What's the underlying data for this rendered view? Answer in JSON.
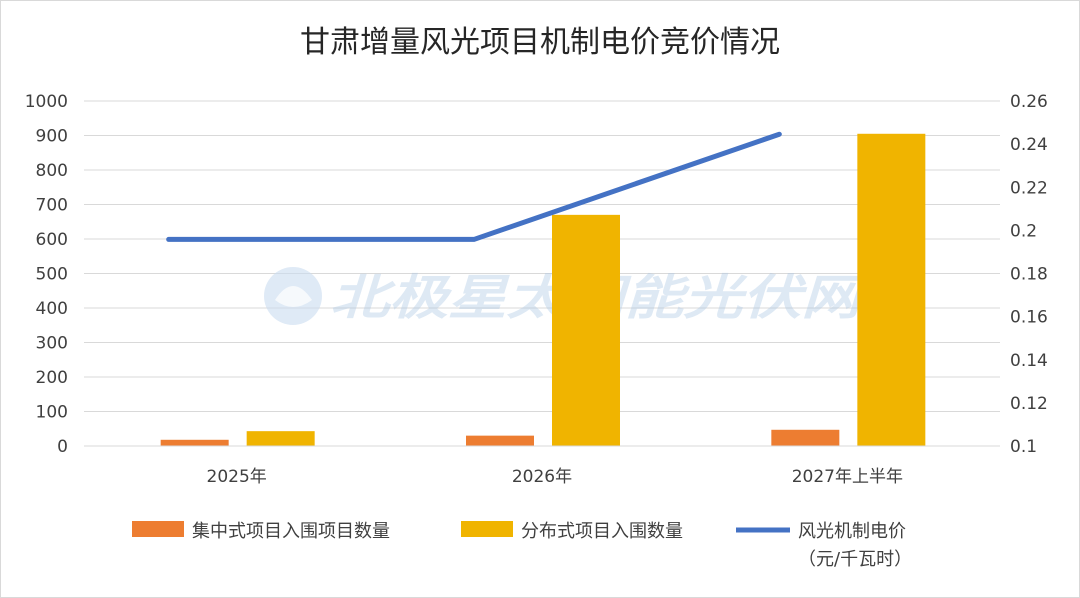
{
  "chart_data": {
    "type": "bar",
    "title": "甘肃增量风光项目机制电价竞价情况",
    "categories": [
      "2025年",
      "2026年",
      "2027年上半年"
    ],
    "series": [
      {
        "name": "集中式项目入围项目数量",
        "type": "bar",
        "axis": "left",
        "color": "#ed7d31",
        "values": [
          18,
          30,
          47
        ]
      },
      {
        "name": "分布式项目入围数量",
        "type": "bar",
        "axis": "left",
        "color": "#f0b400",
        "values": [
          43,
          670,
          905
        ]
      },
      {
        "name": "风光机制电价",
        "name_line2": "（元/千瓦时）",
        "type": "line",
        "axis": "right",
        "color": "#4472c4",
        "values": [
          0.1958,
          0.1958,
          0.2446
        ]
      }
    ],
    "y_left": {
      "min": 0,
      "max": 1000,
      "ticks": [
        "0",
        "100",
        "200",
        "300",
        "400",
        "500",
        "600",
        "700",
        "800",
        "900",
        "1000"
      ]
    },
    "y_right": {
      "min": 0.1,
      "max": 0.26,
      "ticks": [
        "0.1",
        "0.12",
        "0.14",
        "0.16",
        "0.18",
        "0.2",
        "0.22",
        "0.24",
        "0.26"
      ]
    },
    "grid": true,
    "legend_position": "bottom"
  },
  "watermark": {
    "text": "北极星太阳能光伏网"
  }
}
